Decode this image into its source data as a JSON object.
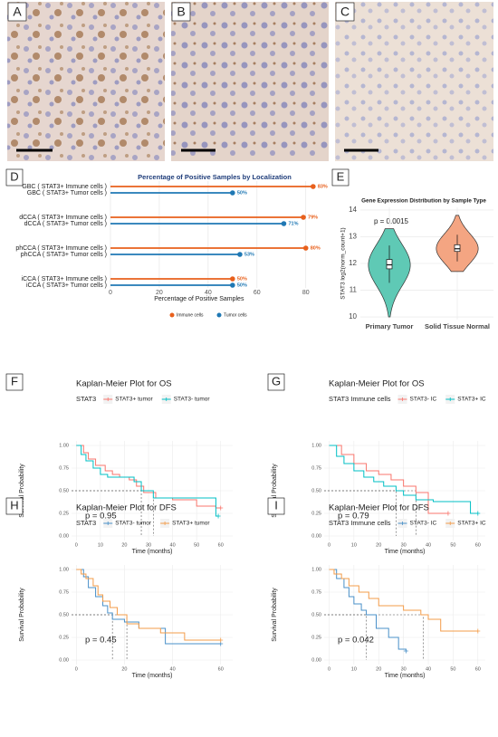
{
  "images": [
    {
      "panel": "A"
    },
    {
      "panel": "B"
    },
    {
      "panel": "C"
    }
  ],
  "chart_data": [
    {
      "panel": "D",
      "type": "lollipop",
      "title": "Percentage of Positive Samples by Localization",
      "x_label": "Percentage of Positive Samples",
      "xlim": [
        0,
        89
      ],
      "xticks": [
        0,
        20,
        40,
        60,
        80
      ],
      "grid": true,
      "legend": "bottom",
      "series": [
        {
          "name": "Immune cells",
          "color": "#e8601c",
          "labels": [
            "GBC ( STAT3+ Immune cells )",
            "dCCA ( STAT3+ Immune cells )",
            "phCCA ( STAT3+ Immune cells )",
            "iCCA ( STAT3+ Immune cells )"
          ],
          "values": [
            83,
            79,
            80,
            50
          ],
          "value_labels": [
            "83%",
            "79%",
            "80%",
            "50%"
          ]
        },
        {
          "name": "Tumor cells",
          "color": "#1f78b4",
          "labels": [
            "GBC ( STAT3+ Tumor cells )",
            "dCCA ( STAT3+ Tumor cells )",
            "phCCA ( STAT3+ Tumor cells )",
            "iCCA ( STAT3+ Tumor cells )"
          ],
          "values": [
            50,
            71,
            53,
            50
          ],
          "value_labels": [
            "50%",
            "71%",
            "53%",
            "50%"
          ]
        }
      ]
    },
    {
      "panel": "E",
      "type": "violin",
      "title": "Gene Expression Distribution by Sample Type",
      "y_label": "STAT3 log2(norm_count+1)",
      "annotation": "p = 0.0015",
      "ylim": [
        9.9,
        14.1
      ],
      "yticks": [
        10,
        11,
        12,
        13,
        14
      ],
      "grid": true,
      "categories": [
        "Primary Tumor",
        "Solid Tissue Normal"
      ],
      "colors": [
        "#5fc9b5",
        "#f4a582"
      ],
      "min": [
        10.0,
        11.7
      ],
      "q1": [
        11.8,
        12.45
      ],
      "median": [
        11.95,
        12.55
      ],
      "q3": [
        12.15,
        12.7
      ],
      "max": [
        13.3,
        13.8
      ]
    },
    {
      "panel": "F",
      "type": "step",
      "title": "Kaplan-Meier Plot for OS",
      "legend_title": "STAT3",
      "annotation": "p = 0.95",
      "x_label": "Time (months)",
      "y_label": "Survival Probability",
      "xlim": [
        -2,
        65
      ],
      "xticks": [
        0,
        10,
        20,
        30,
        40,
        50,
        60
      ],
      "ylim": [
        -0.05,
        1.05
      ],
      "yticks": [
        {
          "value": 0,
          "label": "0.00"
        },
        {
          "value": 0.25,
          "label": "0.25"
        },
        {
          "value": 0.5,
          "label": "0.50"
        },
        {
          "value": 0.75,
          "label": "0.75"
        },
        {
          "value": 1,
          "label": "1.00"
        }
      ],
      "grid": true,
      "medians": [
        27,
        32
      ],
      "series": [
        {
          "name": "STAT3+ tumor",
          "color": "#f8766d",
          "x": [
            0,
            3,
            5,
            8,
            12,
            15,
            18,
            22,
            25,
            28,
            33,
            40,
            50,
            58,
            60
          ],
          "values": [
            1,
            0.92,
            0.85,
            0.78,
            0.72,
            0.68,
            0.65,
            0.62,
            0.55,
            0.48,
            0.42,
            0.4,
            0.33,
            0.31,
            0.31
          ]
        },
        {
          "name": "STAT3- tumor",
          "color": "#00bfc4",
          "x": [
            0,
            2,
            4,
            7,
            10,
            13,
            18,
            24,
            27,
            32,
            45,
            55,
            58,
            59
          ],
          "values": [
            1,
            0.9,
            0.83,
            0.75,
            0.68,
            0.65,
            0.65,
            0.6,
            0.5,
            0.42,
            0.42,
            0.42,
            0.22,
            0.22
          ]
        }
      ]
    },
    {
      "panel": "G",
      "type": "step",
      "title": "Kaplan-Meier Plot for OS",
      "legend_title": "STAT3 Immune cells",
      "annotation": "p = 0.79",
      "x_label": "Time (months)",
      "y_label": "Survival Probability",
      "xlim": [
        -2,
        63
      ],
      "xticks": [
        0,
        10,
        20,
        30,
        40,
        50,
        60
      ],
      "ylim": [
        -0.05,
        1.05
      ],
      "yticks": [
        {
          "value": 0,
          "label": "0.00"
        },
        {
          "value": 0.25,
          "label": "0.25"
        },
        {
          "value": 0.5,
          "label": "0.50"
        },
        {
          "value": 0.75,
          "label": "0.75"
        },
        {
          "value": 1,
          "label": "1.00"
        }
      ],
      "grid": true,
      "medians": [
        27,
        35
      ],
      "series": [
        {
          "name": "STAT3- IC",
          "color": "#f8766d",
          "x": [
            0,
            5,
            10,
            15,
            20,
            25,
            30,
            35,
            40,
            48
          ],
          "values": [
            1,
            0.9,
            0.8,
            0.72,
            0.68,
            0.62,
            0.55,
            0.48,
            0.25,
            0.25
          ]
        },
        {
          "name": "STAT3+ IC",
          "color": "#00bfc4",
          "x": [
            0,
            3,
            6,
            10,
            14,
            18,
            22,
            27,
            30,
            35,
            42,
            50,
            57,
            60
          ],
          "values": [
            1,
            0.88,
            0.8,
            0.72,
            0.65,
            0.6,
            0.55,
            0.5,
            0.45,
            0.4,
            0.38,
            0.38,
            0.25,
            0.25
          ]
        }
      ]
    },
    {
      "panel": "H",
      "type": "step",
      "title": "Kaplan-Meier Plot for DFS",
      "legend_title": "STAT3",
      "annotation": "p = 0.45",
      "x_label": "Time (months)",
      "y_label": "Survival Probability",
      "xlim": [
        -2,
        65
      ],
      "xticks": [
        0,
        20,
        40,
        60
      ],
      "ylim": [
        -0.05,
        1.05
      ],
      "yticks": [
        {
          "value": 0,
          "label": "0.00"
        },
        {
          "value": 0.25,
          "label": "0.25"
        },
        {
          "value": 0.5,
          "label": "0.50"
        },
        {
          "value": 0.75,
          "label": "0.75"
        },
        {
          "value": 1,
          "label": "1.00"
        }
      ],
      "grid": true,
      "medians": [
        15,
        21
      ],
      "series": [
        {
          "name": "STAT3- tumor",
          "color": "#4a90c8",
          "x": [
            0,
            3,
            5,
            8,
            11,
            13,
            15,
            20,
            26,
            37,
            60
          ],
          "values": [
            1,
            0.92,
            0.8,
            0.7,
            0.6,
            0.52,
            0.45,
            0.42,
            0.35,
            0.18,
            0.18
          ]
        },
        {
          "name": "STAT3+ tumor",
          "color": "#f39c4a",
          "x": [
            0,
            2,
            4,
            7,
            9,
            11,
            14,
            17,
            21,
            26,
            35,
            45,
            60
          ],
          "values": [
            1,
            0.95,
            0.9,
            0.82,
            0.72,
            0.65,
            0.58,
            0.5,
            0.4,
            0.35,
            0.3,
            0.22,
            0.22
          ]
        }
      ]
    },
    {
      "panel": "I",
      "type": "step",
      "title": "Kaplan-Meier Plot for DFS",
      "legend_title": "STAT3 Immune cells",
      "annotation": "p = 0.042",
      "x_label": "Time (months)",
      "y_label": "Survival Probability",
      "xlim": [
        -2,
        63
      ],
      "xticks": [
        0,
        10,
        20,
        30,
        40,
        50,
        60
      ],
      "ylim": [
        -0.05,
        1.05
      ],
      "yticks": [
        {
          "value": 0,
          "label": "0.00"
        },
        {
          "value": 0.25,
          "label": "0.25"
        },
        {
          "value": 0.5,
          "label": "0.50"
        },
        {
          "value": 0.75,
          "label": "0.75"
        },
        {
          "value": 1,
          "label": "1.00"
        }
      ],
      "grid": true,
      "medians": [
        15,
        38
      ],
      "series": [
        {
          "name": "STAT3- IC",
          "color": "#4a90c8",
          "x": [
            0,
            3,
            6,
            8,
            10,
            13,
            15,
            19,
            24,
            28,
            31
          ],
          "values": [
            1,
            0.9,
            0.8,
            0.7,
            0.62,
            0.55,
            0.5,
            0.35,
            0.25,
            0.12,
            0.1
          ]
        },
        {
          "name": "STAT3+ IC",
          "color": "#f39c4a",
          "x": [
            0,
            2,
            5,
            8,
            12,
            16,
            20,
            27,
            30,
            37,
            40,
            45,
            60
          ],
          "values": [
            1,
            0.95,
            0.9,
            0.82,
            0.75,
            0.68,
            0.6,
            0.6,
            0.55,
            0.5,
            0.45,
            0.32,
            0.32
          ]
        }
      ]
    }
  ]
}
